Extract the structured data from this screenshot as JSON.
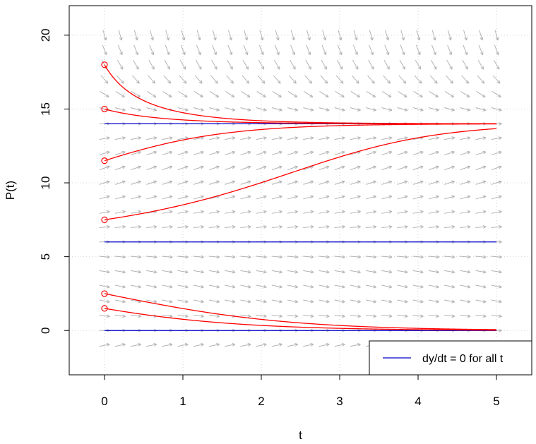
{
  "chart_data": {
    "type": "line",
    "title": "",
    "xlabel": "t",
    "ylabel": "P(t)",
    "xlim": [
      -0.45,
      5.45
    ],
    "ylim": [
      -3.0,
      22.0
    ],
    "xticks": [
      0,
      1,
      2,
      3,
      4,
      5
    ],
    "yticks": [
      0,
      5,
      10,
      15,
      20
    ],
    "xtick_labels": [
      "0",
      "1",
      "2",
      "3",
      "4",
      "5"
    ],
    "ytick_labels": [
      "0",
      "5",
      "10",
      "15",
      "20"
    ],
    "grid": true,
    "equilibria": [
      0,
      6,
      14
    ],
    "equilibrium_color": "#0000cc",
    "solution_color": "#ff0000",
    "field_color": "#b4b4b4",
    "initial_conditions": [
      18,
      15,
      11.5,
      7.5,
      2.5,
      1.5
    ],
    "series": [
      {
        "t0": 0,
        "p0": 18,
        "t": [
          0,
          0.25,
          0.5,
          0.75,
          1,
          1.5,
          2,
          3,
          4,
          5
        ],
        "p": [
          18,
          16.2,
          15.1,
          14.6,
          14.35,
          14.1,
          14.03,
          14.0,
          14.0,
          14.0
        ]
      },
      {
        "t0": 0,
        "p0": 15,
        "t": [
          0,
          0.5,
          1,
          1.5,
          2,
          3,
          4,
          5
        ],
        "p": [
          15,
          14.45,
          14.2,
          14.08,
          14.03,
          14.0,
          14.0,
          14.0
        ]
      },
      {
        "t0": 0,
        "p0": 11.5,
        "t": [
          0,
          0.5,
          1,
          1.5,
          2,
          2.5,
          3,
          4,
          5
        ],
        "p": [
          11.5,
          12.6,
          13.3,
          13.65,
          13.85,
          13.93,
          13.97,
          14.0,
          14.0
        ]
      },
      {
        "t0": 0,
        "p0": 7.5,
        "t": [
          0,
          0.5,
          1,
          1.5,
          2,
          2.5,
          3,
          3.5,
          4,
          5
        ],
        "p": [
          7.5,
          8.2,
          9.3,
          10.8,
          12.2,
          13.1,
          13.6,
          13.85,
          13.95,
          14.0
        ]
      },
      {
        "t0": 0,
        "p0": 2.5,
        "t": [
          0,
          0.5,
          1,
          1.5,
          2,
          2.5,
          3,
          4,
          5
        ],
        "p": [
          2.5,
          1.75,
          1.15,
          0.7,
          0.4,
          0.2,
          0.1,
          0.02,
          0.0
        ]
      },
      {
        "t0": 0,
        "p0": 1.5,
        "t": [
          0,
          0.5,
          1,
          1.5,
          2,
          2.5,
          3,
          4,
          5
        ],
        "p": [
          1.5,
          1.05,
          0.7,
          0.42,
          0.25,
          0.13,
          0.06,
          0.01,
          0.0
        ]
      }
    ],
    "legend": {
      "position": "bottom-right",
      "entries": [
        "dy/dt = 0 for all t"
      ]
    }
  }
}
